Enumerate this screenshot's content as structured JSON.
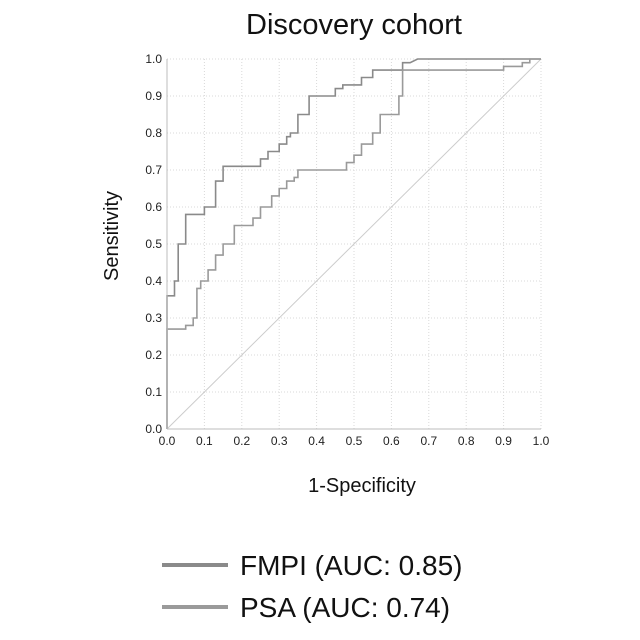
{
  "chart_data": {
    "type": "line",
    "title": "Discovery cohort",
    "xlabel": "1-Specificity",
    "ylabel": "Sensitivity",
    "xlim": [
      0,
      1
    ],
    "ylim": [
      0,
      1
    ],
    "x_ticks": [
      "0.0",
      "0.1",
      "0.2",
      "0.3",
      "0.4",
      "0.5",
      "0.6",
      "0.7",
      "0.8",
      "0.9",
      "1.0"
    ],
    "y_ticks": [
      "0.0",
      "0.1",
      "0.2",
      "0.3",
      "0.4",
      "0.5",
      "0.6",
      "0.7",
      "0.8",
      "0.9",
      "1.0"
    ],
    "grid": true,
    "legend_position": "bottom",
    "reference_line": {
      "x": [
        0,
        1
      ],
      "y": [
        0,
        1
      ],
      "color": "#cccccc"
    },
    "series": [
      {
        "name": "FMPI (AUC: 0.85)",
        "color": "#8a8a8a",
        "points": [
          [
            0,
            0
          ],
          [
            0,
            0.36
          ],
          [
            0.02,
            0.36
          ],
          [
            0.02,
            0.4
          ],
          [
            0.03,
            0.4
          ],
          [
            0.03,
            0.5
          ],
          [
            0.05,
            0.5
          ],
          [
            0.05,
            0.58
          ],
          [
            0.1,
            0.58
          ],
          [
            0.1,
            0.6
          ],
          [
            0.13,
            0.6
          ],
          [
            0.13,
            0.67
          ],
          [
            0.15,
            0.67
          ],
          [
            0.15,
            0.71
          ],
          [
            0.25,
            0.71
          ],
          [
            0.25,
            0.73
          ],
          [
            0.27,
            0.73
          ],
          [
            0.27,
            0.75
          ],
          [
            0.3,
            0.75
          ],
          [
            0.3,
            0.77
          ],
          [
            0.32,
            0.77
          ],
          [
            0.32,
            0.79
          ],
          [
            0.33,
            0.79
          ],
          [
            0.33,
            0.8
          ],
          [
            0.35,
            0.8
          ],
          [
            0.35,
            0.85
          ],
          [
            0.38,
            0.85
          ],
          [
            0.38,
            0.9
          ],
          [
            0.45,
            0.9
          ],
          [
            0.45,
            0.92
          ],
          [
            0.47,
            0.92
          ],
          [
            0.47,
            0.93
          ],
          [
            0.52,
            0.93
          ],
          [
            0.52,
            0.95
          ],
          [
            0.55,
            0.95
          ],
          [
            0.55,
            0.97
          ],
          [
            0.63,
            0.97
          ],
          [
            0.63,
            0.99
          ],
          [
            0.65,
            0.99
          ],
          [
            0.67,
            1.0
          ],
          [
            1.0,
            1.0
          ]
        ]
      },
      {
        "name": "PSA (AUC: 0.74)",
        "color": "#9a9a9a",
        "points": [
          [
            0,
            0
          ],
          [
            0,
            0.27
          ],
          [
            0.05,
            0.27
          ],
          [
            0.05,
            0.28
          ],
          [
            0.07,
            0.28
          ],
          [
            0.07,
            0.3
          ],
          [
            0.08,
            0.3
          ],
          [
            0.08,
            0.38
          ],
          [
            0.09,
            0.38
          ],
          [
            0.09,
            0.4
          ],
          [
            0.11,
            0.4
          ],
          [
            0.11,
            0.43
          ],
          [
            0.13,
            0.43
          ],
          [
            0.13,
            0.47
          ],
          [
            0.15,
            0.47
          ],
          [
            0.15,
            0.5
          ],
          [
            0.18,
            0.5
          ],
          [
            0.18,
            0.55
          ],
          [
            0.23,
            0.55
          ],
          [
            0.23,
            0.57
          ],
          [
            0.25,
            0.57
          ],
          [
            0.25,
            0.6
          ],
          [
            0.28,
            0.6
          ],
          [
            0.28,
            0.63
          ],
          [
            0.3,
            0.63
          ],
          [
            0.3,
            0.65
          ],
          [
            0.32,
            0.65
          ],
          [
            0.32,
            0.67
          ],
          [
            0.34,
            0.67
          ],
          [
            0.34,
            0.68
          ],
          [
            0.35,
            0.68
          ],
          [
            0.35,
            0.7
          ],
          [
            0.48,
            0.7
          ],
          [
            0.48,
            0.72
          ],
          [
            0.5,
            0.72
          ],
          [
            0.5,
            0.74
          ],
          [
            0.52,
            0.74
          ],
          [
            0.52,
            0.77
          ],
          [
            0.55,
            0.77
          ],
          [
            0.55,
            0.8
          ],
          [
            0.57,
            0.8
          ],
          [
            0.57,
            0.85
          ],
          [
            0.62,
            0.85
          ],
          [
            0.62,
            0.9
          ],
          [
            0.63,
            0.9
          ],
          [
            0.63,
            0.97
          ],
          [
            0.9,
            0.97
          ],
          [
            0.9,
            0.98
          ],
          [
            0.95,
            0.98
          ],
          [
            0.95,
            0.99
          ],
          [
            0.97,
            0.99
          ],
          [
            0.97,
            1.0
          ],
          [
            1.0,
            1.0
          ]
        ]
      }
    ]
  }
}
